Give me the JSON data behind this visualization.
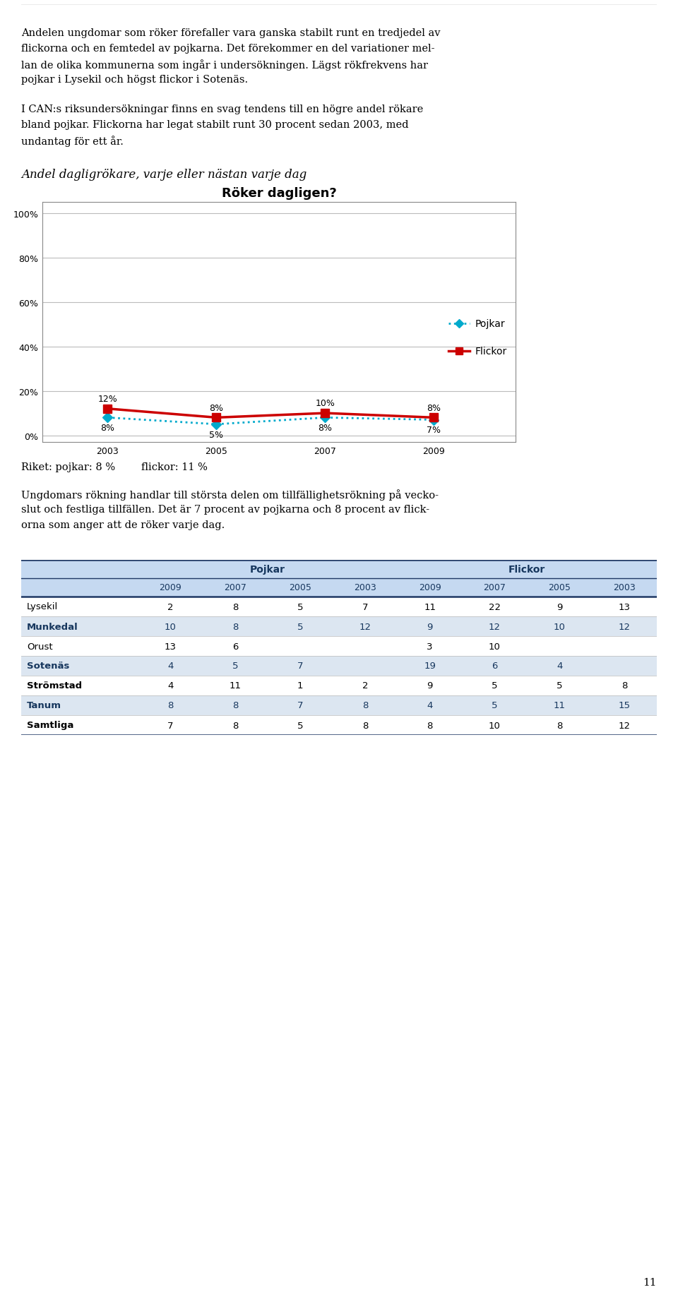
{
  "page_title_line1": "Andelen ungdomar som röker förefaller vara ganska stabilt runt en tredjedel av",
  "page_title_line2": "flickorna och en femtedel av pojkarna. Det förekommer en del variationer mel-",
  "page_title_line3": "lan de olika kommunerna som ingår i undersökningen. Lägst rökfrekvens har",
  "page_title_line4": "pojkar i Lysekil och högst flickor i Sotenäs.",
  "para2_line1": "I CAN:s riksundersökningar finns en svag tendens till en högre andel rökare",
  "para2_line2": "bland pojkar. Flickorna har legat stabilt runt 30 procent sedan 2003, med",
  "para2_line3": "undantag för ett år.",
  "chart_subtitle": "Andel dagligrökare, varje eller nästan varje dag",
  "chart_title": "Röker dagligen?",
  "years": [
    2003,
    2005,
    2007,
    2009
  ],
  "pojkar_values": [
    8,
    5,
    8,
    7
  ],
  "flickor_values": [
    12,
    8,
    10,
    8
  ],
  "pojkar_labels": [
    "8%",
    "5%",
    "8%",
    "7%"
  ],
  "flickor_labels": [
    "12%",
    "8%",
    "10%",
    "8%"
  ],
  "pojkar_color": "#00AACC",
  "flickor_color": "#CC0000",
  "yticks": [
    0,
    20,
    40,
    60,
    80,
    100
  ],
  "ytick_labels": [
    "0%",
    "20%",
    "40%",
    "60%",
    "80%",
    "100%"
  ],
  "riket_text_left": "Riket: pojkar: 8 %",
  "riket_text_right": "flickor: 11 %",
  "para3_line1": "Ungdomars rökning handlar till största delen om tillfällighetsrökning på vecko-",
  "para3_line2": "slut och festliga tillfällen. Det är 7 procent av pojkarna och 8 procent av flick-",
  "para3_line3": "orna som anger att de röker varje dag.",
  "table_col_headers": [
    "",
    "2009",
    "2007",
    "2005",
    "2003",
    "2009",
    "2007",
    "2005",
    "2003"
  ],
  "table_rows": [
    [
      "Lysekil",
      2,
      8,
      5,
      7,
      11,
      22,
      9,
      13
    ],
    [
      "Munkedal",
      10,
      8,
      5,
      12,
      9,
      12,
      10,
      12
    ],
    [
      "Orust",
      13,
      6,
      "",
      "",
      3,
      10,
      "",
      ""
    ],
    [
      "Sotenäs",
      4,
      5,
      7,
      "",
      19,
      6,
      4,
      ""
    ],
    [
      "Strömstad",
      4,
      11,
      1,
      2,
      9,
      5,
      5,
      8
    ],
    [
      "Tanum",
      8,
      8,
      7,
      8,
      4,
      5,
      11,
      15
    ],
    [
      "Samtliga",
      7,
      8,
      5,
      8,
      8,
      10,
      8,
      12
    ]
  ],
  "header_bg": "#C5D9F1",
  "row_alt_bg": "#DCE6F1",
  "row_normal_bg": "#FFFFFF",
  "text_color": "#000000",
  "header_text_color": "#17375E",
  "page_number": "11",
  "background_color": "#FFFFFF"
}
